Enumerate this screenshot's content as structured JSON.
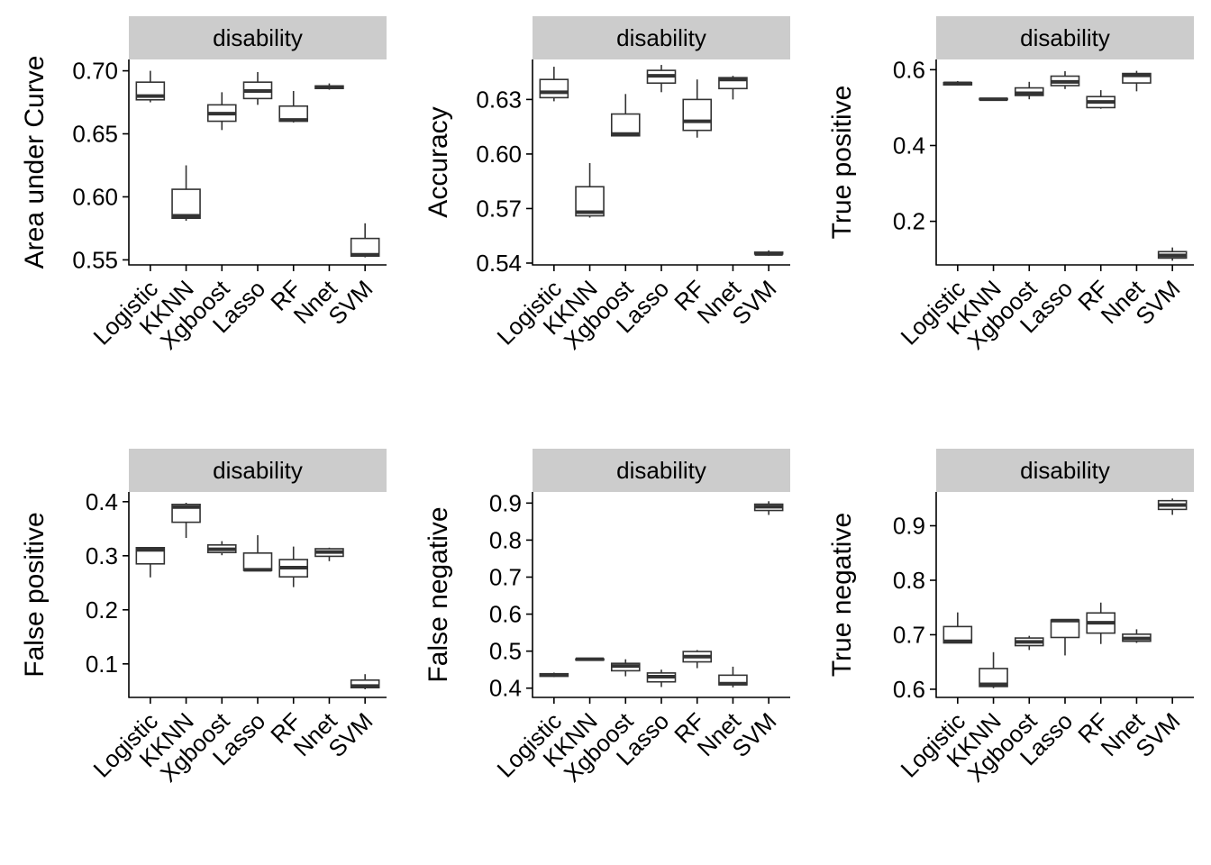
{
  "colors": {
    "strip_bg": "#cccccc",
    "box_fill": "#ffffff",
    "line": "#333333",
    "axis": "#000000"
  },
  "chart_data": [
    {
      "type": "boxplot",
      "facet": "disability",
      "ylabel": "Area under Curve",
      "categories": [
        "Logistic",
        "KKNN",
        "Xgboost",
        "Lasso",
        "RF",
        "Nnet",
        "SVM"
      ],
      "yticks": [
        0.55,
        0.6,
        0.65,
        0.7
      ],
      "ytick_labels": [
        "0.55",
        "0.60",
        "0.65",
        "0.70"
      ],
      "ylim": [
        0.546,
        0.709
      ],
      "boxes": [
        {
          "min": 0.675,
          "q1": 0.677,
          "median": 0.68,
          "q3": 0.691,
          "max": 0.7
        },
        {
          "min": 0.581,
          "q1": 0.583,
          "median": 0.585,
          "q3": 0.606,
          "max": 0.625
        },
        {
          "min": 0.653,
          "q1": 0.66,
          "median": 0.666,
          "q3": 0.673,
          "max": 0.683
        },
        {
          "min": 0.673,
          "q1": 0.678,
          "median": 0.684,
          "q3": 0.691,
          "max": 0.699
        },
        {
          "min": 0.659,
          "q1": 0.66,
          "median": 0.661,
          "q3": 0.672,
          "max": 0.684
        },
        {
          "min": 0.685,
          "q1": 0.686,
          "median": 0.687,
          "q3": 0.688,
          "max": 0.69
        },
        {
          "min": 0.552,
          "q1": 0.553,
          "median": 0.554,
          "q3": 0.567,
          "max": 0.579
        }
      ]
    },
    {
      "type": "boxplot",
      "facet": "disability",
      "ylabel": "Accuracy",
      "categories": [
        "Logistic",
        "KKNN",
        "Xgboost",
        "Lasso",
        "RF",
        "Nnet",
        "SVM"
      ],
      "yticks": [
        0.54,
        0.57,
        0.6,
        0.63
      ],
      "ytick_labels": [
        "0.54",
        "0.57",
        "0.60",
        "0.63"
      ],
      "ylim": [
        0.539,
        0.652
      ],
      "boxes": [
        {
          "min": 0.629,
          "q1": 0.631,
          "median": 0.634,
          "q3": 0.641,
          "max": 0.648
        },
        {
          "min": 0.565,
          "q1": 0.566,
          "median": 0.568,
          "q3": 0.582,
          "max": 0.595
        },
        {
          "min": 0.61,
          "q1": 0.61,
          "median": 0.611,
          "q3": 0.622,
          "max": 0.633
        },
        {
          "min": 0.634,
          "q1": 0.639,
          "median": 0.643,
          "q3": 0.646,
          "max": 0.649
        },
        {
          "min": 0.609,
          "q1": 0.613,
          "median": 0.618,
          "q3": 0.63,
          "max": 0.641
        },
        {
          "min": 0.63,
          "q1": 0.636,
          "median": 0.641,
          "q3": 0.642,
          "max": 0.643
        },
        {
          "min": 0.544,
          "q1": 0.545,
          "median": 0.545,
          "q3": 0.546,
          "max": 0.547
        }
      ]
    },
    {
      "type": "boxplot",
      "facet": "disability",
      "ylabel": "True positive",
      "categories": [
        "Logistic",
        "KKNN",
        "Xgboost",
        "Lasso",
        "RF",
        "Nnet",
        "SVM"
      ],
      "yticks": [
        0.2,
        0.4,
        0.6
      ],
      "ytick_labels": [
        "0.2",
        "0.4",
        "0.6"
      ],
      "ylim": [
        0.085,
        0.627
      ],
      "boxes": [
        {
          "min": 0.558,
          "q1": 0.56,
          "median": 0.564,
          "q3": 0.566,
          "max": 0.57
        },
        {
          "min": 0.52,
          "q1": 0.521,
          "median": 0.522,
          "q3": 0.524,
          "max": 0.526
        },
        {
          "min": 0.522,
          "q1": 0.532,
          "median": 0.538,
          "q3": 0.552,
          "max": 0.568
        },
        {
          "min": 0.549,
          "q1": 0.558,
          "median": 0.568,
          "q3": 0.583,
          "max": 0.596
        },
        {
          "min": 0.497,
          "q1": 0.5,
          "median": 0.515,
          "q3": 0.529,
          "max": 0.546
        },
        {
          "min": 0.543,
          "q1": 0.565,
          "median": 0.585,
          "q3": 0.59,
          "max": 0.597
        },
        {
          "min": 0.096,
          "q1": 0.103,
          "median": 0.11,
          "q3": 0.12,
          "max": 0.131
        }
      ]
    },
    {
      "type": "boxplot",
      "facet": "disability",
      "ylabel": "False positive",
      "categories": [
        "Logistic",
        "KKNN",
        "Xgboost",
        "Lasso",
        "RF",
        "Nnet",
        "SVM"
      ],
      "yticks": [
        0.1,
        0.2,
        0.3,
        0.4
      ],
      "ytick_labels": [
        "0.1",
        "0.2",
        "0.3",
        "0.4"
      ],
      "ylim": [
        0.038,
        0.418
      ],
      "boxes": [
        {
          "min": 0.26,
          "q1": 0.285,
          "median": 0.311,
          "q3": 0.315,
          "max": 0.315
        },
        {
          "min": 0.333,
          "q1": 0.362,
          "median": 0.39,
          "q3": 0.395,
          "max": 0.398
        },
        {
          "min": 0.301,
          "q1": 0.306,
          "median": 0.312,
          "q3": 0.32,
          "max": 0.327
        },
        {
          "min": 0.272,
          "q1": 0.273,
          "median": 0.274,
          "q3": 0.305,
          "max": 0.338
        },
        {
          "min": 0.242,
          "q1": 0.261,
          "median": 0.278,
          "q3": 0.293,
          "max": 0.317
        },
        {
          "min": 0.29,
          "q1": 0.299,
          "median": 0.307,
          "q3": 0.313,
          "max": 0.315
        },
        {
          "min": 0.053,
          "q1": 0.056,
          "median": 0.059,
          "q3": 0.07,
          "max": 0.081
        }
      ]
    },
    {
      "type": "boxplot",
      "facet": "disability",
      "ylabel": "False negative",
      "categories": [
        "Logistic",
        "KKNN",
        "Xgboost",
        "Lasso",
        "RF",
        "Nnet",
        "SVM"
      ],
      "yticks": [
        0.4,
        0.5,
        0.6,
        0.7,
        0.8,
        0.9
      ],
      "ytick_labels": [
        "0.4",
        "0.5",
        "0.6",
        "0.7",
        "0.8",
        "0.9"
      ],
      "ylim": [
        0.375,
        0.93
      ],
      "boxes": [
        {
          "min": 0.43,
          "q1": 0.432,
          "median": 0.436,
          "q3": 0.439,
          "max": 0.442
        },
        {
          "min": 0.474,
          "q1": 0.476,
          "median": 0.478,
          "q3": 0.479,
          "max": 0.48
        },
        {
          "min": 0.432,
          "q1": 0.447,
          "median": 0.46,
          "q3": 0.467,
          "max": 0.478
        },
        {
          "min": 0.403,
          "q1": 0.417,
          "median": 0.431,
          "q3": 0.441,
          "max": 0.45
        },
        {
          "min": 0.454,
          "q1": 0.471,
          "median": 0.485,
          "q3": 0.499,
          "max": 0.503
        },
        {
          "min": 0.402,
          "q1": 0.409,
          "median": 0.412,
          "q3": 0.435,
          "max": 0.458
        },
        {
          "min": 0.868,
          "q1": 0.88,
          "median": 0.89,
          "q3": 0.897,
          "max": 0.905
        }
      ]
    },
    {
      "type": "boxplot",
      "facet": "disability",
      "ylabel": "True negative",
      "categories": [
        "Logistic",
        "KKNN",
        "Xgboost",
        "Lasso",
        "RF",
        "Nnet",
        "SVM"
      ],
      "yticks": [
        0.6,
        0.7,
        0.8,
        0.9
      ],
      "ytick_labels": [
        "0.6",
        "0.7",
        "0.8",
        "0.9"
      ],
      "ylim": [
        0.585,
        0.962
      ],
      "boxes": [
        {
          "min": 0.685,
          "q1": 0.685,
          "median": 0.688,
          "q3": 0.715,
          "max": 0.741
        },
        {
          "min": 0.602,
          "q1": 0.605,
          "median": 0.609,
          "q3": 0.638,
          "max": 0.668
        },
        {
          "min": 0.672,
          "q1": 0.68,
          "median": 0.687,
          "q3": 0.694,
          "max": 0.698
        },
        {
          "min": 0.662,
          "q1": 0.695,
          "median": 0.726,
          "q3": 0.727,
          "max": 0.728
        },
        {
          "min": 0.683,
          "q1": 0.703,
          "median": 0.722,
          "q3": 0.74,
          "max": 0.759
        },
        {
          "min": 0.685,
          "q1": 0.688,
          "median": 0.693,
          "q3": 0.701,
          "max": 0.71
        },
        {
          "min": 0.92,
          "q1": 0.93,
          "median": 0.938,
          "q3": 0.946,
          "max": 0.95
        }
      ]
    }
  ]
}
